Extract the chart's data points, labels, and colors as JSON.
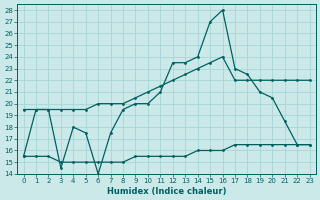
{
  "xlabel": "Humidex (Indice chaleur)",
  "xlim": [
    -0.5,
    23.5
  ],
  "ylim": [
    14,
    28.5
  ],
  "xticks": [
    0,
    1,
    2,
    3,
    4,
    5,
    6,
    7,
    8,
    9,
    10,
    11,
    12,
    13,
    14,
    15,
    16,
    17,
    18,
    19,
    20,
    21,
    22,
    23
  ],
  "yticks": [
    14,
    15,
    16,
    17,
    18,
    19,
    20,
    21,
    22,
    23,
    24,
    25,
    26,
    27,
    28
  ],
  "bg_color": "#cce9e9",
  "grid_color": "#a8d5d5",
  "line_color": "#006060",
  "line1_x": [
    0,
    1,
    2,
    3,
    4,
    5,
    6,
    7,
    8,
    9,
    10,
    11,
    12,
    13,
    14,
    15,
    16,
    17,
    18,
    19,
    20,
    21,
    22,
    23
  ],
  "line1_y": [
    19.5,
    19.5,
    19.5,
    19.5,
    19.5,
    19.5,
    20.0,
    20.0,
    20.0,
    20.5,
    21.0,
    21.5,
    22.0,
    22.5,
    23.0,
    23.5,
    24.0,
    22.0,
    22.0,
    22.0,
    22.0,
    22.0,
    22.0,
    22.0
  ],
  "line2_x": [
    0,
    1,
    2,
    3,
    4,
    5,
    6,
    7,
    8,
    9,
    10,
    11,
    12,
    13,
    14,
    15,
    16,
    17,
    18,
    19,
    20,
    21,
    22,
    23
  ],
  "line2_y": [
    15.5,
    19.5,
    19.5,
    14.5,
    18.0,
    17.5,
    14.0,
    17.5,
    19.5,
    20.0,
    20.0,
    21.0,
    23.5,
    23.5,
    24.0,
    27.0,
    28.0,
    23.0,
    22.5,
    21.0,
    20.5,
    18.5,
    16.5,
    16.5
  ],
  "line3_x": [
    0,
    1,
    2,
    3,
    4,
    5,
    6,
    7,
    8,
    9,
    10,
    11,
    12,
    13,
    14,
    15,
    16,
    17,
    18,
    19,
    20,
    21,
    22,
    23
  ],
  "line3_y": [
    15.5,
    15.5,
    15.5,
    15.0,
    15.0,
    15.0,
    15.0,
    15.0,
    15.0,
    15.5,
    15.5,
    15.5,
    15.5,
    15.5,
    16.0,
    16.0,
    16.0,
    16.5,
    16.5,
    16.5,
    16.5,
    16.5,
    16.5,
    16.5
  ]
}
